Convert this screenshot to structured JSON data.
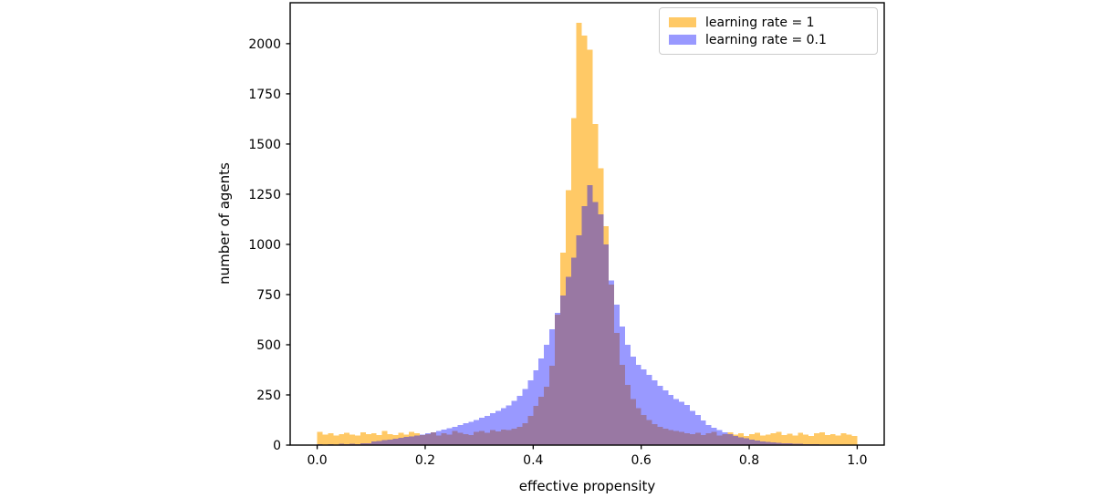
{
  "figure": {
    "background": "#ffffff"
  },
  "chart_data": {
    "type": "bar",
    "subtype": "overlaid-histogram",
    "title": "",
    "xlabel": "effective propensity",
    "ylabel": "number of agents",
    "xlim": [
      -0.05,
      1.05
    ],
    "ylim": [
      0,
      2204
    ],
    "grid": false,
    "legend_position": "upper right",
    "xticks": {
      "values": [
        0.0,
        0.2,
        0.4,
        0.6,
        0.8,
        1.0
      ],
      "labels": [
        "0.0",
        "0.2",
        "0.4",
        "0.6",
        "0.8",
        "1.0"
      ]
    },
    "yticks": {
      "values": [
        0,
        250,
        500,
        750,
        1000,
        1250,
        1500,
        1750,
        2000
      ],
      "labels": [
        "0",
        "250",
        "500",
        "750",
        "1000",
        "1250",
        "1500",
        "1750",
        "2000"
      ]
    },
    "bins": {
      "start": 0.0,
      "width": 0.01,
      "count": 100
    },
    "colors": {
      "orange_fill": "#FFC966",
      "orange_base": "#FFA500",
      "blue_base": "#0000FF",
      "blue_fill_opacity": 0.4,
      "blue_fill": "#9999FF",
      "overlap": "#9979A3",
      "spine": "#000000",
      "text": "#000000"
    },
    "series": [
      {
        "name": "learning rate = 1",
        "values": [
          66,
          52,
          58,
          48,
          55,
          62,
          52,
          48,
          64,
          55,
          58,
          50,
          70,
          55,
          50,
          62,
          52,
          66,
          58,
          50,
          55,
          64,
          48,
          58,
          52,
          70,
          62,
          55,
          50,
          66,
          70,
          62,
          74,
          68,
          78,
          74,
          82,
          90,
          108,
          145,
          195,
          240,
          290,
          395,
          650,
          960,
          1270,
          1630,
          2105,
          2040,
          1970,
          1600,
          1380,
          1090,
          800,
          560,
          400,
          300,
          230,
          185,
          150,
          125,
          105,
          90,
          82,
          74,
          70,
          66,
          60,
          55,
          62,
          50,
          58,
          66,
          48,
          55,
          64,
          52,
          58,
          46,
          55,
          62,
          48,
          52,
          60,
          66,
          50,
          56,
          48,
          62,
          52,
          46,
          58,
          64,
          50,
          55,
          48,
          60,
          52,
          45
        ]
      },
      {
        "name": "learning rate = 0.1",
        "values": [
          4,
          2,
          5,
          3,
          6,
          4,
          7,
          5,
          8,
          10,
          18,
          20,
          24,
          28,
          32,
          36,
          40,
          44,
          48,
          52,
          58,
          64,
          70,
          78,
          85,
          92,
          100,
          108,
          116,
          126,
          136,
          146,
          158,
          170,
          184,
          198,
          220,
          245,
          280,
          322,
          372,
          432,
          500,
          578,
          660,
          745,
          838,
          935,
          1045,
          1190,
          1295,
          1210,
          1150,
          1000,
          820,
          700,
          590,
          500,
          440,
          400,
          378,
          350,
          322,
          296,
          272,
          250,
          230,
          215,
          200,
          170,
          150,
          122,
          100,
          86,
          74,
          63,
          54,
          46,
          39,
          33,
          28,
          23,
          19,
          16,
          13,
          11,
          9,
          8,
          7,
          6,
          5,
          4,
          4,
          3,
          3,
          2,
          3,
          2,
          2,
          3
        ]
      }
    ]
  }
}
